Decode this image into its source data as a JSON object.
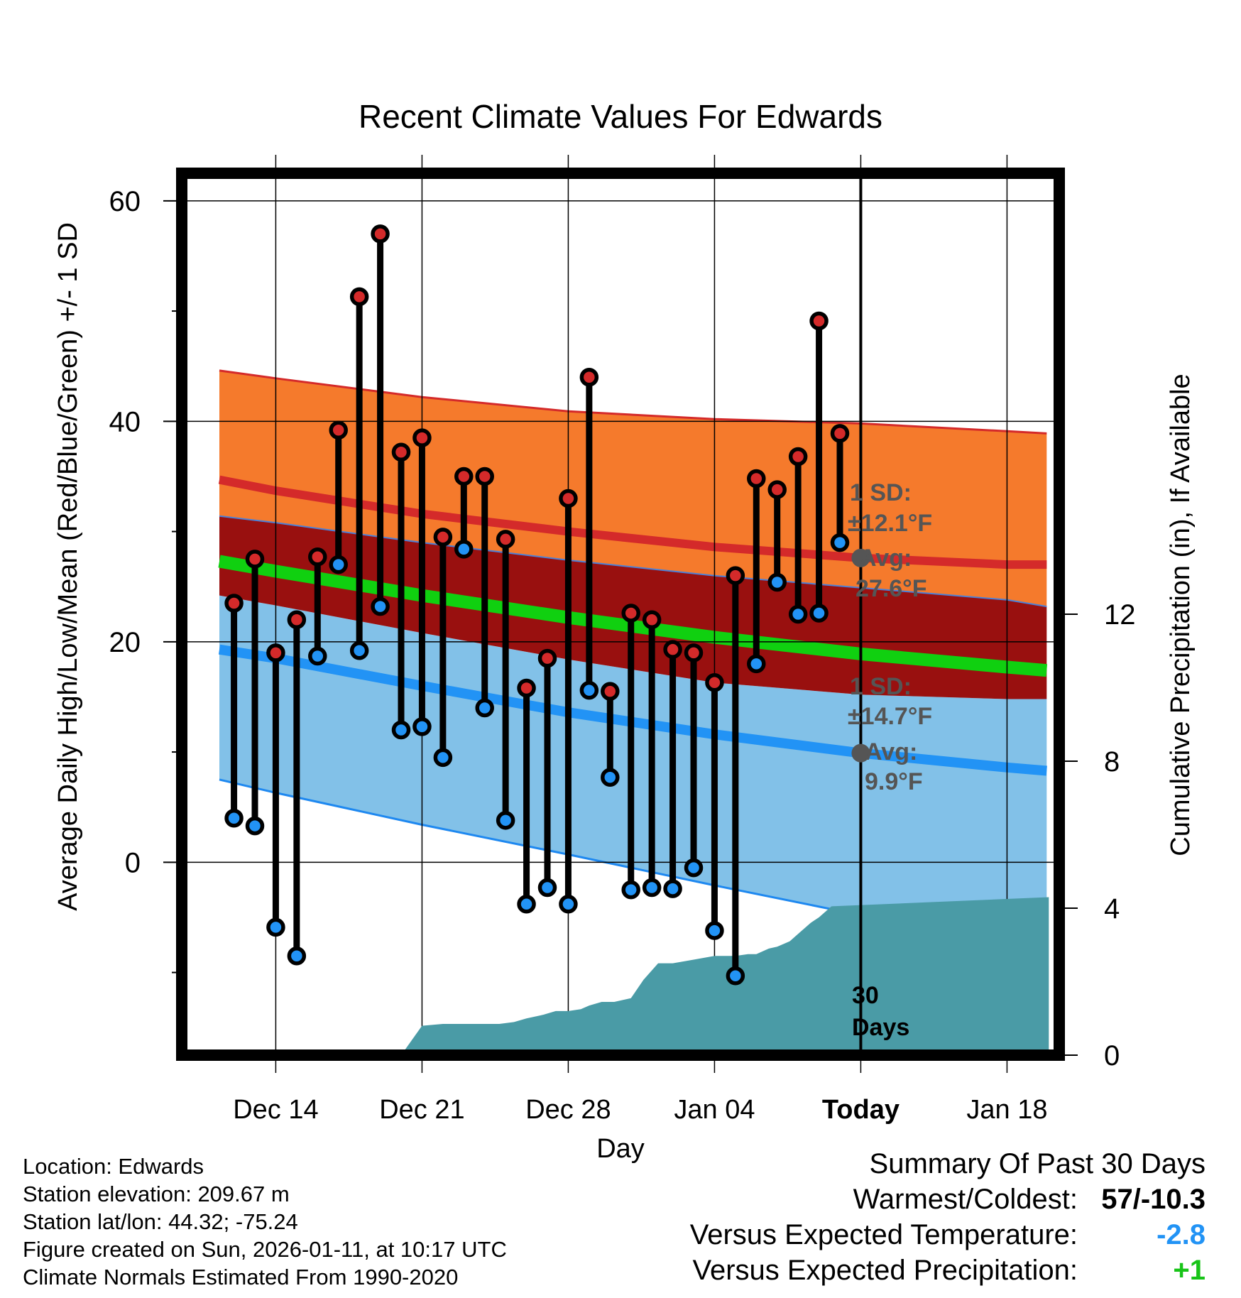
{
  "chart_data": {
    "type": "line",
    "title": "Recent Climate Values For Edwards",
    "xlabel": "Day",
    "ylabel": "Average Daily High/Low/Mean (Red/Blue/Green) +/- 1 SD",
    "y2label": "Cumulative Precipitation (in), If Available",
    "xlim": [
      -4.5,
      37.5
    ],
    "ylim": [
      -17.5,
      62.5
    ],
    "y2lim": [
      0,
      24
    ],
    "xticks": [
      {
        "x": 0,
        "label": "Dec 14"
      },
      {
        "x": 7,
        "label": "Dec 21"
      },
      {
        "x": 14,
        "label": "Dec 28"
      },
      {
        "x": 21,
        "label": "Jan 04"
      },
      {
        "x": 28,
        "label": "Today"
      },
      {
        "x": 35,
        "label": "Jan 18"
      }
    ],
    "yticks": [
      0,
      20,
      40,
      60
    ],
    "y2ticks": [
      0,
      4,
      8,
      12
    ],
    "today_x": 28,
    "days_label": "30\nDays",
    "normals": {
      "x": [
        -2.7,
        0,
        7,
        14,
        21,
        28,
        35,
        36.9
      ],
      "high_mean": [
        34.7,
        33.7,
        31.6,
        30.0,
        28.6,
        27.6,
        27.0,
        27.0
      ],
      "high_plus_sd": [
        44.6,
        43.9,
        42.2,
        40.9,
        40.2,
        39.8,
        39.1,
        38.9
      ],
      "high_minus_sd": [
        31.4,
        30.8,
        29.0,
        27.4,
        26.0,
        24.9,
        23.8,
        23.2
      ],
      "mean": [
        27.3,
        26.4,
        24.2,
        22.2,
        20.4,
        18.9,
        17.7,
        17.4
      ],
      "low_mean": [
        19.3,
        18.5,
        16.0,
        13.6,
        11.6,
        9.9,
        8.6,
        8.3
      ],
      "low_plus_sd": [
        24.2,
        23.3,
        20.8,
        18.4,
        16.3,
        15.2,
        14.8,
        14.8
      ],
      "low_minus_sd": [
        7.5,
        6.3,
        3.4,
        0.7,
        -2.1,
        -4.8,
        -4.8,
        -4.8
      ]
    },
    "high_annotation": {
      "sd_label": "1 SD:",
      "sd_value": "±12.1°F",
      "avg_label": "Avg:",
      "avg_value": "27.6°F",
      "avg": 27.6
    },
    "low_annotation": {
      "sd_label": "1 SD:",
      "sd_value": "±14.7°F",
      "avg_label": "Avg:",
      "avg_value": "9.9°F",
      "avg": 9.9
    },
    "series": [
      {
        "name": "High",
        "color": "#d42a2a",
        "x": [
          -2,
          -1,
          0,
          1,
          2,
          3,
          4,
          5,
          6,
          7,
          8,
          9,
          10,
          11,
          12,
          13,
          14,
          15,
          16,
          17,
          18,
          19,
          20,
          21,
          22,
          23,
          24,
          25,
          26,
          27
        ],
        "values": [
          23.5,
          27.5,
          19,
          22,
          27.7,
          39.2,
          51.3,
          57,
          37.2,
          38.5,
          29.5,
          35,
          35,
          29.3,
          15.8,
          18.5,
          33,
          44,
          15.5,
          22.6,
          22,
          19.3,
          19,
          16.3,
          26,
          34.8,
          33.8,
          36.8,
          49.1,
          38.9
        ]
      },
      {
        "name": "Low",
        "color": "#2293f5",
        "x": [
          -2,
          -1,
          0,
          1,
          2,
          3,
          4,
          5,
          6,
          7,
          8,
          9,
          10,
          11,
          12,
          13,
          14,
          15,
          16,
          17,
          18,
          19,
          20,
          21,
          22,
          23,
          24,
          25,
          26,
          27
        ],
        "values": [
          4,
          3.3,
          -5.9,
          -8.5,
          18.7,
          27,
          19.2,
          23.2,
          12,
          12.3,
          9.5,
          28.4,
          14,
          3.8,
          -3.8,
          -2.3,
          -3.8,
          15.6,
          7.7,
          -2.5,
          -2.3,
          -2.4,
          -0.5,
          -6.2,
          -10.3,
          18,
          25.4,
          22.5,
          22.6,
          29
        ]
      },
      {
        "name": "Cumulative Precipitation",
        "color": "#4a9ba6",
        "x": [
          0.8,
          1.8,
          2.5,
          3.5,
          4.0,
          4.6,
          5.3,
          6.0,
          7.0,
          8.0,
          8.6,
          9.4,
          10.0,
          10.7,
          11.4,
          12.0,
          12.8,
          13.4,
          14.0,
          14.6,
          15.0,
          15.6,
          16.2,
          17.0,
          17.6,
          18.3,
          19.0,
          20.0,
          21.0,
          22.0,
          22.6,
          23.0,
          23.6,
          24.0,
          24.6,
          25.0,
          25.6,
          26.0,
          26.6,
          37.0
        ],
        "values": [
          0,
          0,
          0,
          0,
          0,
          0,
          0,
          0,
          0.8,
          0.85,
          0.85,
          0.85,
          0.85,
          0.85,
          0.9,
          1.0,
          1.1,
          1.2,
          1.2,
          1.25,
          1.35,
          1.45,
          1.45,
          1.55,
          2.05,
          2.5,
          2.5,
          2.6,
          2.7,
          2.7,
          2.75,
          2.75,
          2.9,
          2.95,
          3.1,
          3.3,
          3.6,
          3.75,
          4.05,
          4.3
        ]
      }
    ]
  },
  "info": {
    "location": "Location: Edwards",
    "elevation": "Station elevation: 209.67 m",
    "latlon": "Station lat/lon: 44.32; -75.24",
    "created": "Figure created on Sun, 2026-01-11, at 10:17 UTC",
    "normals": "Climate Normals Estimated From 1990-2020"
  },
  "summary": {
    "heading": "Summary Of Past 30 Days",
    "warm_cold_label": "Warmest/Coldest:",
    "warm_cold_value": "57/-10.3",
    "temp_label": "Versus Expected Temperature:",
    "temp_value": "-2.8",
    "temp_color": "#2293f5",
    "precip_label": "Versus Expected Precipitation:",
    "precip_value": "+1",
    "precip_color": "#18c418"
  }
}
